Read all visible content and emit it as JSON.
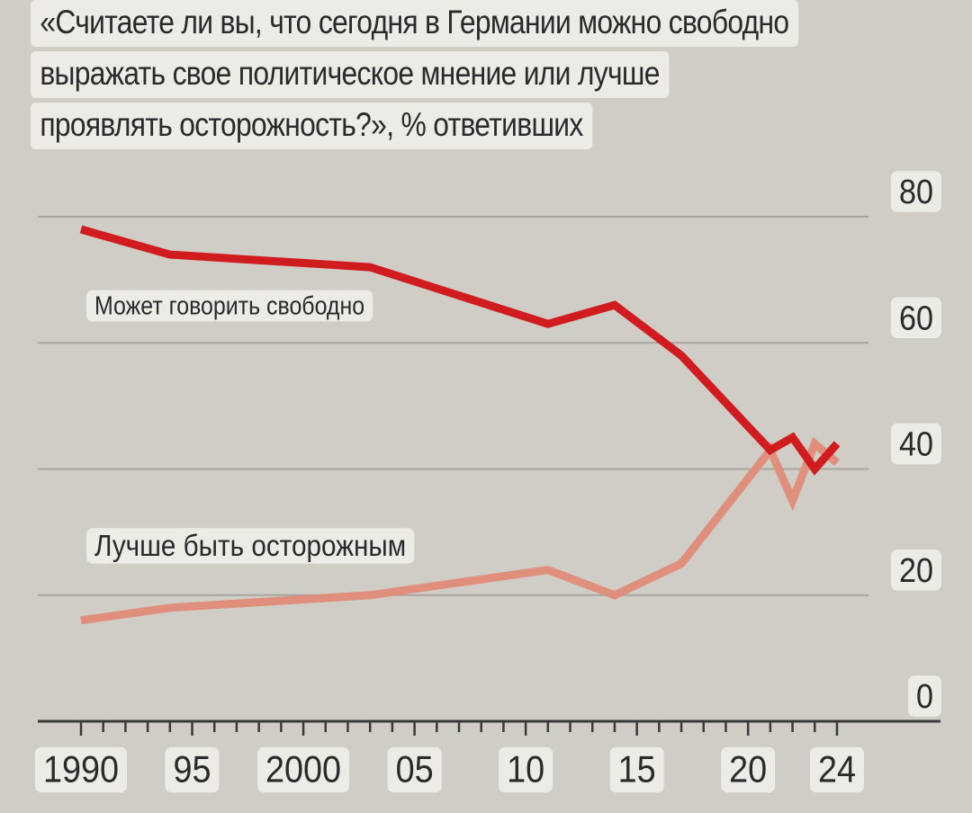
{
  "title_lines": [
    "«Считаете ли вы, что сегодня в Германии можно свободно",
    "выражать свое политическое мнение или лучше",
    "проявлять осторожность?», % ответивших"
  ],
  "colors": {
    "background": "#cfcdc6",
    "label_bg": "#ecebe6",
    "series_free": "#d01c1f",
    "series_careful": "#e08f7c",
    "grid": "#a7a59e",
    "axis": "#3a3a3a",
    "text": "#2a2a2a"
  },
  "chart_data": {
    "type": "line",
    "title": "«Считаете ли вы, что сегодня в Германии можно свободно выражать свое политическое мнение или лучше проявлять осторожность?», % ответивших",
    "ylim": [
      0,
      80
    ],
    "xlim": [
      1989,
      2026
    ],
    "y_ticks": [
      "0",
      "20",
      "40",
      "60",
      "80"
    ],
    "y_tick_values": [
      0,
      20,
      40,
      60,
      80
    ],
    "x_tick_labels": [
      "1990",
      "95",
      "2000",
      "05",
      "10",
      "15",
      "20",
      "24"
    ],
    "x_tick_values": [
      1990,
      1995,
      2000,
      2005,
      2010,
      2015,
      2020,
      2024
    ],
    "grid": true,
    "series": [
      {
        "name": "Может говорить свободно",
        "x": [
          1990,
          1994,
          2003,
          2011,
          2014,
          2017,
          2021,
          2022,
          2023,
          2024
        ],
        "values": [
          78,
          74,
          72,
          63,
          66,
          58,
          43,
          45,
          40,
          44
        ]
      },
      {
        "name": "Лучше быть осторожным",
        "x": [
          1990,
          1994,
          2003,
          2011,
          2014,
          2017,
          2021,
          2022,
          2023,
          2024
        ],
        "values": [
          16,
          18,
          20,
          24,
          20,
          25,
          43,
          35,
          44,
          41
        ]
      }
    ]
  }
}
